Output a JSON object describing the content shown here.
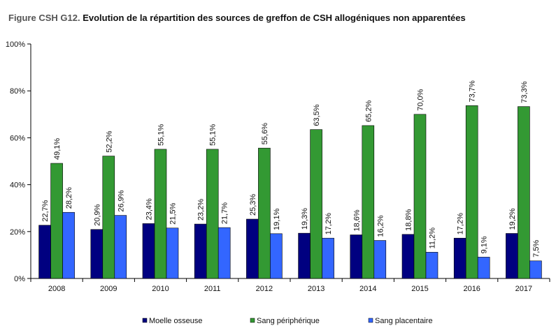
{
  "chart_data": {
    "type": "bar",
    "title_prefix": "Figure CSH G12.",
    "title": "Evolution de la répartition des sources de greffon de CSH allogéniques non apparentées",
    "categories": [
      "2008",
      "2009",
      "2010",
      "2011",
      "2012",
      "2013",
      "2014",
      "2015",
      "2016",
      "2017"
    ],
    "series": [
      {
        "name": "Moelle osseuse",
        "color": "#000080",
        "values": [
          22.7,
          20.9,
          23.4,
          23.2,
          25.3,
          19.3,
          18.6,
          18.8,
          17.2,
          19.2
        ],
        "labels": [
          "22,7%",
          "20,9%",
          "23,4%",
          "23,2%",
          "25,3%",
          "19,3%",
          "18,6%",
          "18,8%",
          "17,2%",
          "19,2%"
        ]
      },
      {
        "name": "Sang périphérique",
        "color": "#339933",
        "values": [
          49.1,
          52.2,
          55.1,
          55.1,
          55.6,
          63.5,
          65.2,
          70.0,
          73.7,
          73.3
        ],
        "labels": [
          "49,1%",
          "52,2%",
          "55,1%",
          "55,1%",
          "55,6%",
          "63,5%",
          "65,2%",
          "70,0%",
          "73,7%",
          "73,3%"
        ]
      },
      {
        "name": "Sang placentaire",
        "color": "#3366ff",
        "values": [
          28.2,
          26.9,
          21.5,
          21.7,
          19.1,
          17.2,
          16.2,
          11.2,
          9.1,
          7.5
        ],
        "labels": [
          "28,2%",
          "26,9%",
          "21,5%",
          "21,7%",
          "19,1%",
          "17,2%",
          "16,2%",
          "11,2%",
          "9,1%",
          "7,5%"
        ]
      }
    ],
    "ylim": [
      0,
      100
    ],
    "yticks": [
      0,
      20,
      40,
      60,
      80,
      100
    ],
    "ytick_labels": [
      "0%",
      "20%",
      "40%",
      "60%",
      "80%",
      "100%"
    ],
    "grid": false,
    "legend_position": "bottom"
  }
}
